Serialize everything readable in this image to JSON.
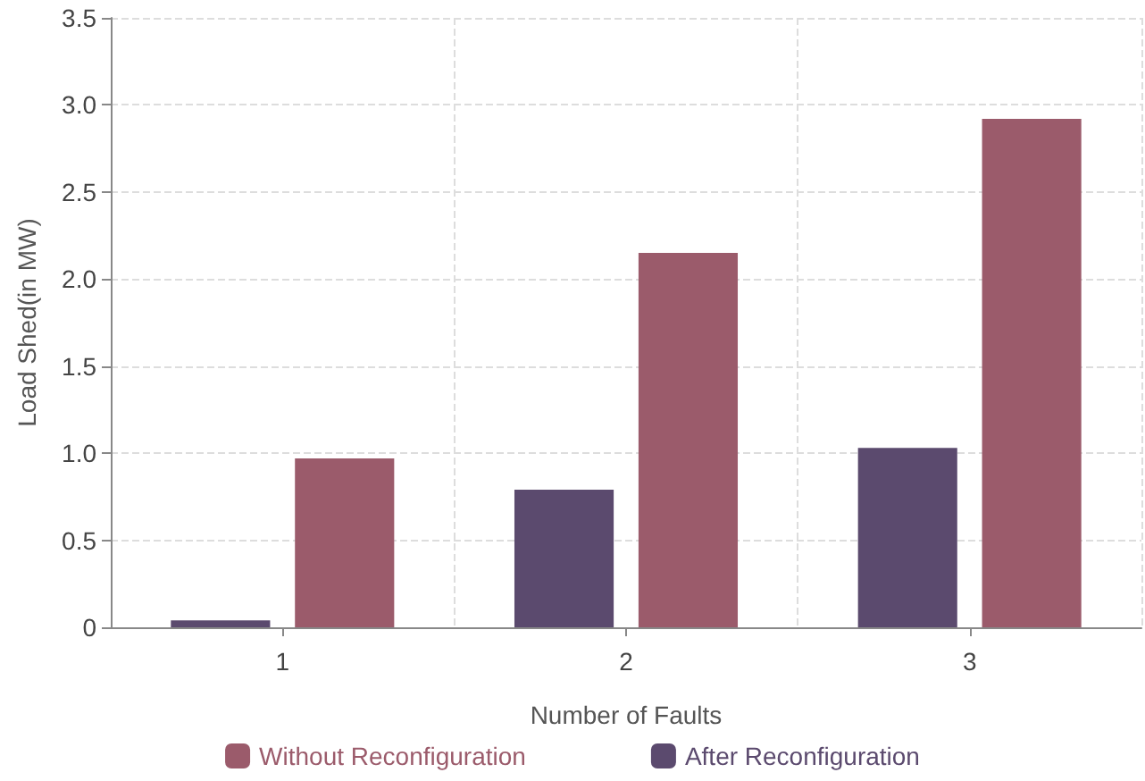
{
  "chart_data": {
    "type": "bar",
    "xlabel": "Number of Faults",
    "ylabel": "Load Shed(in MW)",
    "categories": [
      "1",
      "2",
      "3"
    ],
    "series": [
      {
        "name": "After Reconfiguration",
        "color": "#5b4a6e",
        "values": [
          0.04,
          0.79,
          1.03
        ]
      },
      {
        "name": "Without Reconfiguration",
        "color": "#9b5b6b",
        "values": [
          0.97,
          2.15,
          2.92
        ]
      }
    ],
    "ylim": [
      0,
      3.5
    ],
    "yticks": [
      0,
      {
        "value": 0.5,
        "label": "0.5"
      },
      {
        "value": 1,
        "label": "1.0"
      },
      {
        "value": 1.5,
        "label": "1.5"
      },
      {
        "value": 2,
        "label": "2.0"
      },
      {
        "value": 2.5,
        "label": "2.5"
      },
      {
        "value": 3,
        "label": "3.0"
      },
      {
        "value": 3.5,
        "label": "3.5"
      }
    ],
    "grid": true,
    "legend": "bottom"
  }
}
